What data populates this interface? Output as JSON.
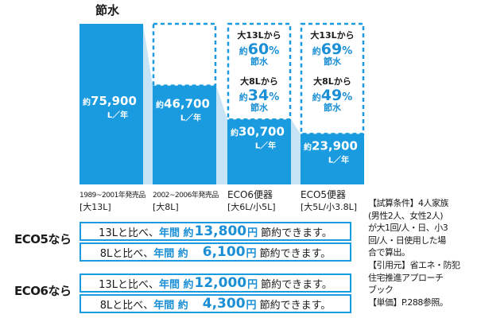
{
  "chart_data": {
    "type": "bar",
    "title": "節水",
    "unit": "L／年",
    "value_prefix": "約",
    "ylim": [
      0,
      80000
    ],
    "categories": [
      {
        "line1": "1989~2001年発売品",
        "line2": "[大13L]"
      },
      {
        "line1": "2002~2006年発売品",
        "line2": "[大8L]"
      },
      {
        "line1": "ECO6便器",
        "line2": "[大6L/小5L]"
      },
      {
        "line1": "ECO5便器",
        "line2": "[大5L/小3.8L]"
      }
    ],
    "values": [
      75900,
      46700,
      30700,
      23900
    ],
    "value_labels": [
      "75,900",
      "46,700",
      "30,700",
      "23,900"
    ],
    "reference_outline_value": 75900,
    "savings_annotations": [
      {
        "category_index": 2,
        "lines": [
          {
            "pre": "大13Lから",
            "yaku": "約",
            "num": "60",
            "pct": "%",
            "post": "節水"
          },
          {
            "pre": "大8Lから",
            "yaku": "約",
            "num": "34",
            "pct": "%",
            "post": "節水"
          }
        ]
      },
      {
        "category_index": 3,
        "lines": [
          {
            "pre": "大13Lから",
            "yaku": "約",
            "num": "69",
            "pct": "%",
            "post": "節水"
          },
          {
            "pre": "大8Lから",
            "yaku": "約",
            "num": "49",
            "pct": "%",
            "post": "節水"
          }
        ]
      }
    ]
  },
  "comparisons": [
    {
      "label": "ECO5なら",
      "rows": [
        {
          "base": "13Lと比べ、",
          "period": "年間 約",
          "amount": "13,800",
          "unit": "円",
          "tail": "節約できます。"
        },
        {
          "base": "8Lと比べ、",
          "period": "年間 約",
          "amount": "6,100",
          "unit": "円",
          "tail": "節約できます。"
        }
      ]
    },
    {
      "label": "ECO6なら",
      "rows": [
        {
          "base": "13Lと比べ、",
          "period": "年間 約",
          "amount": "12,000",
          "unit": "円",
          "tail": "節約できます。"
        },
        {
          "base": "8Lと比べ、",
          "period": "年間 約",
          "amount": "4,300",
          "unit": "円",
          "tail": "節約できます。"
        }
      ]
    }
  ],
  "notes": {
    "conditions": [
      "【試算条件】4人家族",
      "(男性2人、女性2人)",
      "が大1回/人・日、小3",
      "回/人・日使用した場",
      "合で算出。"
    ],
    "source": [
      "【引用元】省エネ・防犯",
      "住宅推進アプローチ",
      "ブック"
    ],
    "price": [
      "【単価】P.288参照。"
    ]
  },
  "colors": {
    "bar": "#1a9be0",
    "shadow": "#c6e4f6",
    "value_text": "#1a8fd6",
    "text": "#1a1a1a"
  }
}
